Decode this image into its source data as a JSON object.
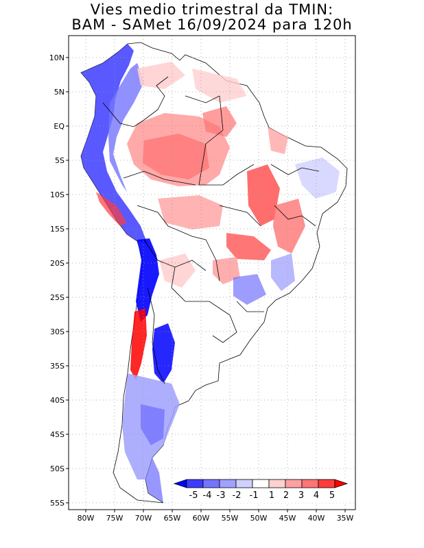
{
  "title": {
    "line1": "Vies medio trimestral da TMIN:",
    "line2": "BAM - SAMet 16/09/2024  para 120h"
  },
  "axes": {
    "lon_labels": [
      "80W",
      "75W",
      "70W",
      "65W",
      "60W",
      "55W",
      "50W",
      "45W",
      "40W",
      "35W"
    ],
    "lon_values": [
      -80,
      -75,
      -70,
      -65,
      -60,
      -55,
      -50,
      -45,
      -40,
      -35
    ],
    "lat_labels": [
      "10N",
      "5N",
      "EQ",
      "5S",
      "10S",
      "15S",
      "20S",
      "25S",
      "30S",
      "35S",
      "40S",
      "45S",
      "50S",
      "55S"
    ],
    "lat_values": [
      10,
      5,
      0,
      -5,
      -10,
      -15,
      -20,
      -25,
      -30,
      -35,
      -40,
      -45,
      -50,
      -55
    ],
    "lon_range": [
      -82.5,
      -34.5
    ],
    "lat_range": [
      12.5,
      -55.8
    ],
    "grid": "dotted"
  },
  "colorbar": {
    "labels": [
      "-5",
      "-4",
      "-3",
      "-2",
      "-1",
      "1",
      "2",
      "3",
      "4",
      "5"
    ],
    "colors": [
      "#0000ff",
      "#3c3cff",
      "#7474ff",
      "#a0a0ff",
      "#d0d0ff",
      "#ffffff",
      "#ffd0d0",
      "#ffa0a0",
      "#ff7474",
      "#ff3c3c",
      "#ff0000"
    ],
    "orientation": "horizontal",
    "position": "bottom-right"
  },
  "colors": {
    "land_neutral": "#ffffff",
    "border": "#000000",
    "grid": "#999999"
  }
}
